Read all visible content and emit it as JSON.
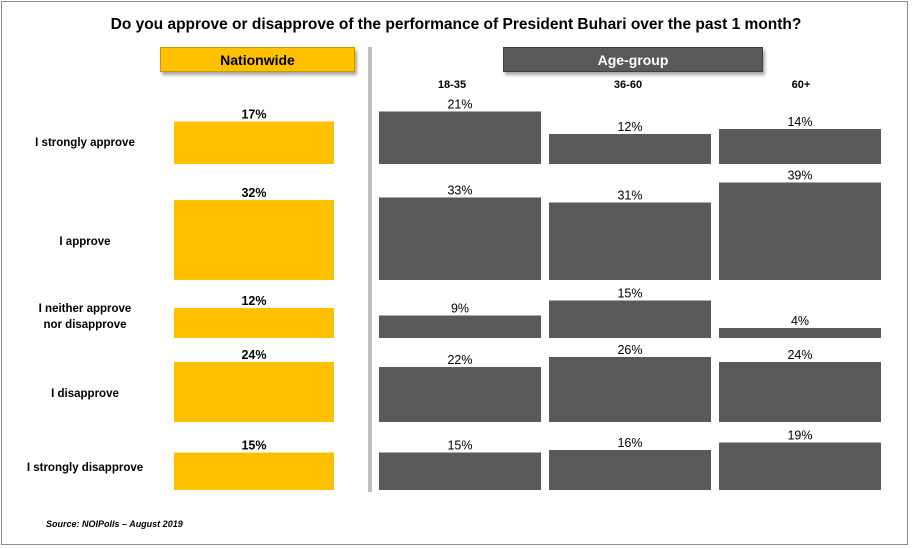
{
  "title": "Do you approve or disapprove of the performance of President Buhari over the past 1 month?",
  "source": "Source: NOIPolls – August 2019",
  "colors": {
    "nationwide": "#ffc000",
    "age": "#595959"
  },
  "chart_data": {
    "type": "bar",
    "title": "Do you approve or disapprove of the performance of President Buhari over the past 1 month?",
    "categories": [
      "I strongly approve",
      "I approve",
      "I neither approve nor disapprove",
      "I disapprove",
      "I strongly disapprove"
    ],
    "category_lines": [
      [
        "I strongly approve"
      ],
      [
        "I approve"
      ],
      [
        "I neither approve",
        "nor disapprove"
      ],
      [
        "I disapprove"
      ],
      [
        "I strongly disapprove"
      ]
    ],
    "panels": [
      {
        "header": "Nationwide",
        "series": [
          {
            "name": "Nationwide",
            "values": [
              17,
              32,
              12,
              24,
              15
            ]
          }
        ]
      },
      {
        "header": "Age-group",
        "series": [
          {
            "name": "18-35",
            "values": [
              21,
              33,
              9,
              22,
              15
            ]
          },
          {
            "name": "36-60",
            "values": [
              12,
              31,
              15,
              26,
              16
            ]
          },
          {
            "name": "60+",
            "values": [
              14,
              39,
              4,
              24,
              19
            ]
          }
        ]
      }
    ],
    "value_suffix": "%",
    "ylim": [
      0,
      40
    ]
  }
}
